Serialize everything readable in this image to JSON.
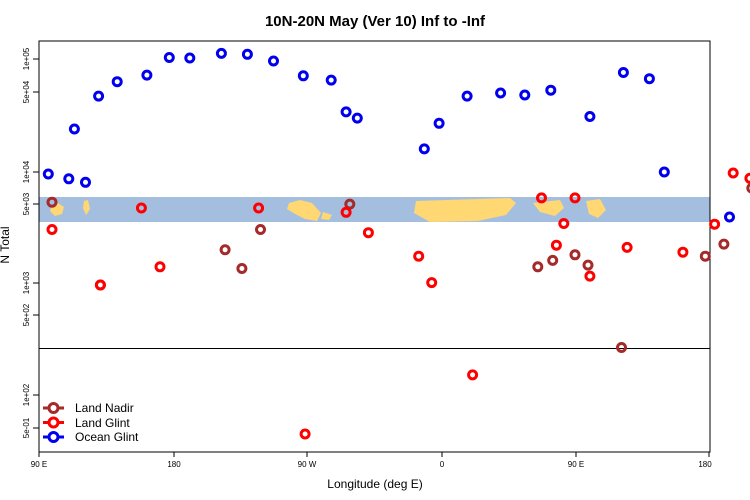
{
  "chart_data": {
    "type": "scatter",
    "title": "10N-20N May (Ver 10)   Inf to -Inf",
    "xlabel": "Longitude (deg E)",
    "ylabel": "N Total",
    "x_tick_labels": [
      "90 E",
      "180",
      "90 W",
      "0",
      "90 E",
      "180"
    ],
    "y_tick_labels": [
      "5e-01",
      "1e+02",
      "5e+02",
      "1e+03",
      "5e+03",
      "1e+04",
      "5e+04",
      "1e+05"
    ],
    "series": [
      {
        "name": "Land Nadir",
        "color": "#a52a2a",
        "points": [
          [
            97,
            5400
          ],
          [
            123,
            1000
          ],
          [
            190,
            2050
          ],
          [
            199,
            1400
          ],
          [
            209,
            3100
          ],
          [
            257,
            5200
          ],
          [
            358,
            1450
          ],
          [
            366,
            1650
          ],
          [
            378,
            1850
          ],
          [
            385,
            1500
          ],
          [
            403,
            280
          ],
          [
            448,
            1800
          ],
          [
            458,
            2300
          ],
          [
            473,
            7200
          ],
          [
            480,
            14000
          ],
          [
            488,
            4500
          ],
          [
            518,
            520
          ],
          [
            528,
            5500
          ],
          [
            578,
            3800
          ],
          [
            587,
            100
          ],
          [
            617,
            320
          ],
          [
            716,
            560
          ]
        ]
      },
      {
        "name": "Land Glint",
        "color": "#ff0000",
        "points": [
          [
            97,
            3100
          ],
          [
            123,
            1000
          ],
          [
            145,
            4800
          ],
          [
            155,
            1450
          ],
          [
            208,
            4800
          ],
          [
            233,
            48
          ],
          [
            255,
            4400
          ],
          [
            267,
            2900
          ],
          [
            294,
            1800
          ],
          [
            301,
            1050
          ],
          [
            323,
            160
          ],
          [
            360,
            5900
          ],
          [
            368,
            2250
          ],
          [
            372,
            3500
          ],
          [
            378,
            5900
          ],
          [
            386,
            1200
          ],
          [
            406,
            2150
          ],
          [
            436,
            1950
          ],
          [
            453,
            3450
          ],
          [
            463,
            9800
          ],
          [
            472,
            8800
          ],
          [
            480,
            13200
          ],
          [
            482,
            8500
          ],
          [
            527,
            1150
          ],
          [
            532,
            3800
          ],
          [
            572,
            4100
          ],
          [
            591,
            1400
          ],
          [
            616,
            90
          ],
          [
            623,
            1300
          ],
          [
            656,
            80
          ],
          [
            728,
            1100
          ],
          [
            732,
            26
          ]
        ]
      },
      {
        "name": "Ocean Glint",
        "color": "#0000ee",
        "points": [
          [
            95,
            9600
          ],
          [
            106,
            8700
          ],
          [
            109,
            24000
          ],
          [
            115,
            8100
          ],
          [
            122,
            47000
          ],
          [
            132,
            63000
          ],
          [
            148,
            72000
          ],
          [
            160,
            103000
          ],
          [
            171,
            102000
          ],
          [
            188,
            112000
          ],
          [
            202,
            110000
          ],
          [
            216,
            96000
          ],
          [
            232,
            71000
          ],
          [
            247,
            65000
          ],
          [
            255,
            34000
          ],
          [
            261,
            30000
          ],
          [
            297,
            16000
          ],
          [
            305,
            27000
          ],
          [
            320,
            47000
          ],
          [
            338,
            50000
          ],
          [
            351,
            48000
          ],
          [
            365,
            53000
          ],
          [
            386,
            31000
          ],
          [
            404,
            76000
          ],
          [
            418,
            67000
          ],
          [
            426,
            10000
          ],
          [
            461,
            4000
          ],
          [
            490,
            4500
          ],
          [
            515,
            6000
          ],
          [
            526,
            56000
          ],
          [
            539,
            85000
          ],
          [
            561,
            110000
          ],
          [
            583,
            3600
          ],
          [
            595,
            7900
          ],
          [
            612,
            18000
          ],
          [
            616,
            24000
          ],
          [
            628,
            3200
          ],
          [
            640,
            74000
          ],
          [
            652,
            69000
          ],
          [
            669,
            53000
          ],
          [
            674,
            29000
          ],
          [
            695,
            45000
          ],
          [
            714,
            84000
          ],
          [
            741,
            96000
          ],
          [
            752,
            103000
          ]
        ]
      }
    ]
  }
}
